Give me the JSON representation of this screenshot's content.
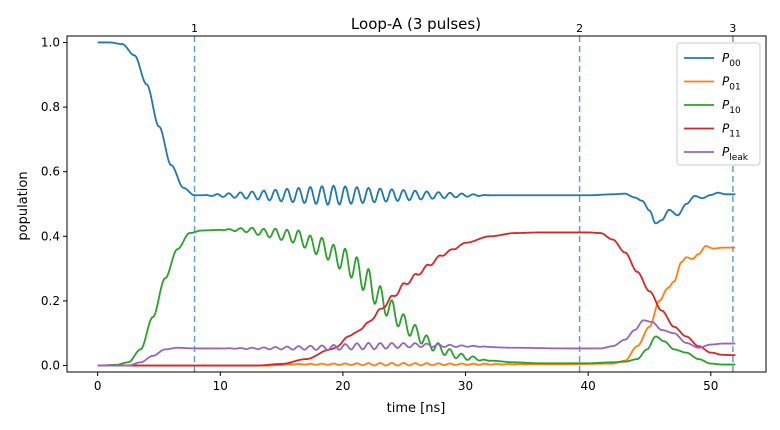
{
  "chart_data": {
    "type": "line",
    "title": "Loop-A (3 pulses)",
    "xlabel": "time [ns]",
    "ylabel": "population",
    "xlim": [
      -2.5,
      54.5
    ],
    "ylim": [
      -0.02,
      1.02
    ],
    "xticks": [
      0,
      10,
      20,
      30,
      40,
      50
    ],
    "yticks": [
      0.0,
      0.2,
      0.4,
      0.6,
      0.8,
      1.0
    ],
    "grid": false,
    "legend_position": "top-right",
    "pulse_markers": [
      {
        "label": "1",
        "x": 7.9
      },
      {
        "label": "2",
        "x": 39.3
      },
      {
        "label": "3",
        "x": 51.8
      }
    ],
    "series": [
      {
        "name": "P",
        "sub": "00",
        "color": "#1f77b4",
        "points": [
          [
            0,
            1.0
          ],
          [
            1,
            1.0
          ],
          [
            2,
            0.995
          ],
          [
            3,
            0.96
          ],
          [
            4,
            0.87
          ],
          [
            5,
            0.74
          ],
          [
            6,
            0.62
          ],
          [
            7,
            0.55
          ],
          [
            7.9,
            0.527
          ],
          [
            9,
            0.527
          ],
          [
            10,
            0.527
          ],
          [
            13,
            0.527
          ],
          [
            16,
            0.527
          ],
          [
            20,
            0.527
          ],
          [
            24,
            0.527
          ],
          [
            28,
            0.527
          ],
          [
            32,
            0.527
          ],
          [
            36,
            0.527
          ],
          [
            40,
            0.527
          ],
          [
            42,
            0.53
          ],
          [
            43,
            0.532
          ],
          [
            43.8,
            0.52
          ],
          [
            44.4,
            0.51
          ],
          [
            45,
            0.48
          ],
          [
            45.5,
            0.44
          ],
          [
            46,
            0.45
          ],
          [
            46.6,
            0.482
          ],
          [
            47.3,
            0.465
          ],
          [
            48,
            0.5
          ],
          [
            48.7,
            0.525
          ],
          [
            49.3,
            0.518
          ],
          [
            50,
            0.528
          ],
          [
            50.6,
            0.535
          ],
          [
            51.2,
            0.53
          ],
          [
            52,
            0.53
          ]
        ],
        "osc": {
          "start": 8.5,
          "end": 32.0,
          "peak": 19.0,
          "amp": 0.03,
          "period": 0.95
        }
      },
      {
        "name": "P",
        "sub": "01",
        "color": "#ff7f0e",
        "points": [
          [
            0,
            0.0
          ],
          [
            14,
            0.0
          ],
          [
            16,
            0.004
          ],
          [
            38,
            0.004
          ],
          [
            42,
            0.006
          ],
          [
            43,
            0.015
          ],
          [
            44,
            0.06
          ],
          [
            45,
            0.12
          ],
          [
            45.8,
            0.2
          ],
          [
            46.5,
            0.24
          ],
          [
            47,
            0.26
          ],
          [
            47.6,
            0.32
          ],
          [
            48,
            0.335
          ],
          [
            48.5,
            0.33
          ],
          [
            49,
            0.345
          ],
          [
            49.6,
            0.37
          ],
          [
            50.2,
            0.362
          ],
          [
            51,
            0.365
          ],
          [
            52,
            0.365
          ]
        ],
        "osc": {
          "start": 14.0,
          "end": 36.0,
          "peak": 24.0,
          "amp": 0.004,
          "period": 0.95
        }
      },
      {
        "name": "P",
        "sub": "10",
        "color": "#2ca02c",
        "points": [
          [
            0,
            0.0
          ],
          [
            1.5,
            0.002
          ],
          [
            2.5,
            0.01
          ],
          [
            3.5,
            0.05
          ],
          [
            4.5,
            0.15
          ],
          [
            5.5,
            0.27
          ],
          [
            6.5,
            0.36
          ],
          [
            7.5,
            0.41
          ],
          [
            8.5,
            0.418
          ],
          [
            10,
            0.42
          ],
          [
            12,
            0.42
          ],
          [
            14,
            0.41
          ],
          [
            16,
            0.4
          ],
          [
            18,
            0.37
          ],
          [
            20,
            0.33
          ],
          [
            21,
            0.3
          ],
          [
            22,
            0.26
          ],
          [
            23,
            0.21
          ],
          [
            24,
            0.17
          ],
          [
            25,
            0.13
          ],
          [
            26,
            0.1
          ],
          [
            27,
            0.07
          ],
          [
            28,
            0.05
          ],
          [
            29,
            0.035
          ],
          [
            30,
            0.025
          ],
          [
            32,
            0.015
          ],
          [
            34,
            0.01
          ],
          [
            36,
            0.007
          ],
          [
            40,
            0.007
          ],
          [
            42,
            0.01
          ],
          [
            43,
            0.012
          ],
          [
            44,
            0.02
          ],
          [
            44.8,
            0.05
          ],
          [
            45.5,
            0.09
          ],
          [
            46.2,
            0.075
          ],
          [
            47,
            0.05
          ],
          [
            48,
            0.04
          ],
          [
            49,
            0.02
          ],
          [
            50,
            0.006
          ],
          [
            51,
            0.003
          ],
          [
            52,
            0.003
          ]
        ],
        "osc": {
          "start": 10.0,
          "end": 32.0,
          "peak": 22.0,
          "amp": 0.04,
          "period": 0.95
        }
      },
      {
        "name": "P",
        "sub": "11",
        "color": "#d62728",
        "points": [
          [
            0,
            0.0
          ],
          [
            13,
            0.0
          ],
          [
            15,
            0.005
          ],
          [
            17,
            0.02
          ],
          [
            19,
            0.05
          ],
          [
            21,
            0.1
          ],
          [
            22,
            0.13
          ],
          [
            23,
            0.17
          ],
          [
            24,
            0.21
          ],
          [
            25,
            0.25
          ],
          [
            26,
            0.28
          ],
          [
            27,
            0.31
          ],
          [
            28,
            0.34
          ],
          [
            29,
            0.36
          ],
          [
            30,
            0.38
          ],
          [
            32,
            0.4
          ],
          [
            34,
            0.41
          ],
          [
            36,
            0.412
          ],
          [
            40,
            0.412
          ],
          [
            41,
            0.41
          ],
          [
            42,
            0.39
          ],
          [
            43,
            0.35
          ],
          [
            44,
            0.29
          ],
          [
            45,
            0.23
          ],
          [
            46,
            0.17
          ],
          [
            47,
            0.12
          ],
          [
            48,
            0.09
          ],
          [
            49,
            0.06
          ],
          [
            50,
            0.04
          ],
          [
            51,
            0.033
          ],
          [
            52,
            0.032
          ]
        ],
        "osc": {
          "start": 18.0,
          "end": 30.0,
          "peak": 24.0,
          "amp": 0.006,
          "period": 0.95
        }
      },
      {
        "name": "P",
        "sub": "leak",
        "color": "#9467bd",
        "points": [
          [
            0,
            0.0
          ],
          [
            2.5,
            0.0
          ],
          [
            3.5,
            0.01
          ],
          [
            4.5,
            0.03
          ],
          [
            5.5,
            0.05
          ],
          [
            6.5,
            0.055
          ],
          [
            7.9,
            0.053
          ],
          [
            12,
            0.053
          ],
          [
            18,
            0.055
          ],
          [
            22,
            0.06
          ],
          [
            26,
            0.063
          ],
          [
            30,
            0.06
          ],
          [
            34,
            0.055
          ],
          [
            38,
            0.053
          ],
          [
            41,
            0.053
          ],
          [
            42,
            0.06
          ],
          [
            43,
            0.08
          ],
          [
            43.8,
            0.11
          ],
          [
            44.5,
            0.14
          ],
          [
            45.2,
            0.135
          ],
          [
            46,
            0.11
          ],
          [
            47,
            0.1
          ],
          [
            48,
            0.07
          ],
          [
            49,
            0.055
          ],
          [
            50,
            0.065
          ],
          [
            51,
            0.068
          ],
          [
            52,
            0.068
          ]
        ],
        "osc": {
          "start": 10.0,
          "end": 32.0,
          "peak": 22.0,
          "amp": 0.01,
          "period": 0.95
        }
      }
    ]
  }
}
